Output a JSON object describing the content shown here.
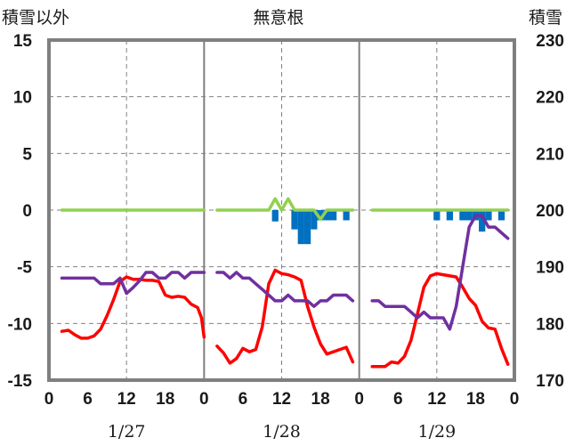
{
  "chart_data": {
    "type": "line",
    "title": "無意根",
    "y_left_label": "積雪以外",
    "y_right_label": "積雪",
    "y_left_range": [
      -15,
      15
    ],
    "y_left_ticks": [
      15,
      10,
      5,
      0,
      -5,
      -10,
      -15
    ],
    "y_right_range": [
      170,
      230
    ],
    "y_right_ticks": [
      230,
      220,
      210,
      200,
      190,
      180,
      170
    ],
    "x_hours_range": [
      0,
      72
    ],
    "x_tick_labels": [
      "0",
      "6",
      "12",
      "18",
      "0",
      "6",
      "12",
      "18",
      "0",
      "6",
      "12",
      "18",
      "0"
    ],
    "day_labels": [
      "1/27",
      "1/28",
      "1/29"
    ],
    "grid": true,
    "series": [
      {
        "color": "#ff0000",
        "axis": "left",
        "segments": [
          [
            [
              2,
              -10.7
            ],
            [
              3,
              -10.6
            ],
            [
              4,
              -11.0
            ],
            [
              5,
              -11.3
            ],
            [
              6,
              -11.3
            ],
            [
              7,
              -11.1
            ],
            [
              8,
              -10.5
            ],
            [
              9,
              -9.3
            ],
            [
              10,
              -7.9
            ],
            [
              11,
              -6.3
            ],
            [
              12,
              -5.9
            ],
            [
              13,
              -6.1
            ],
            [
              14,
              -6.1
            ],
            [
              15,
              -6.2
            ],
            [
              16,
              -6.2
            ],
            [
              17,
              -6.3
            ],
            [
              18,
              -7.5
            ],
            [
              19,
              -7.7
            ],
            [
              20,
              -7.6
            ],
            [
              21,
              -7.7
            ],
            [
              22,
              -8.3
            ],
            [
              23,
              -8.6
            ],
            [
              23.6,
              -9.5
            ],
            [
              24,
              -11.2
            ]
          ],
          [
            [
              26,
              -12.0
            ],
            [
              27,
              -12.6
            ],
            [
              28,
              -13.5
            ],
            [
              29,
              -13.1
            ],
            [
              30,
              -12.2
            ],
            [
              31,
              -12.5
            ],
            [
              32,
              -12.3
            ],
            [
              33,
              -10.3
            ],
            [
              34,
              -6.5
            ],
            [
              35,
              -5.3
            ],
            [
              36,
              -5.6
            ],
            [
              37,
              -5.7
            ],
            [
              38,
              -5.9
            ],
            [
              39,
              -6.2
            ],
            [
              40,
              -8.5
            ],
            [
              41,
              -10.3
            ],
            [
              42,
              -11.8
            ],
            [
              43,
              -12.7
            ],
            [
              44,
              -12.5
            ],
            [
              45,
              -12.3
            ],
            [
              46,
              -12.1
            ],
            [
              47,
              -13.4
            ]
          ],
          [
            [
              50,
              -13.8
            ],
            [
              51,
              -13.8
            ],
            [
              52,
              -13.8
            ],
            [
              53,
              -13.4
            ],
            [
              54,
              -13.5
            ],
            [
              55,
              -12.9
            ],
            [
              56,
              -11.5
            ],
            [
              57,
              -9.2
            ],
            [
              58,
              -6.8
            ],
            [
              59,
              -5.8
            ],
            [
              60,
              -5.6
            ],
            [
              61,
              -5.7
            ],
            [
              62,
              -5.8
            ],
            [
              63,
              -5.9
            ],
            [
              64,
              -6.8
            ],
            [
              65,
              -7.8
            ],
            [
              66,
              -8.4
            ],
            [
              67,
              -9.8
            ],
            [
              68,
              -10.4
            ],
            [
              69,
              -10.5
            ],
            [
              70,
              -12.2
            ],
            [
              71,
              -13.6
            ]
          ]
        ]
      },
      {
        "color": "#7030a0",
        "axis": "right",
        "segments": [
          [
            [
              2,
              188.0
            ],
            [
              3,
              188.0
            ],
            [
              4,
              188.0
            ],
            [
              5,
              188.0
            ],
            [
              6,
              188.0
            ],
            [
              7,
              188.0
            ],
            [
              8,
              187.0
            ],
            [
              9,
              187.0
            ],
            [
              10,
              187.0
            ],
            [
              11,
              188.0
            ],
            [
              12,
              185.3
            ],
            [
              13,
              186.3
            ],
            [
              14,
              187.5
            ],
            [
              15,
              189.0
            ],
            [
              16,
              189.0
            ],
            [
              17,
              188.0
            ],
            [
              18,
              188.0
            ],
            [
              19,
              189.0
            ],
            [
              20,
              189.0
            ],
            [
              21,
              188.0
            ],
            [
              22,
              189.0
            ],
            [
              23,
              189.0
            ],
            [
              24,
              189.0
            ]
          ],
          [
            [
              26,
              189.0
            ],
            [
              27,
              189.0
            ],
            [
              28,
              188.0
            ],
            [
              29,
              189.0
            ],
            [
              30,
              188.0
            ],
            [
              31,
              188.0
            ],
            [
              32,
              187.0
            ],
            [
              33,
              186.0
            ],
            [
              34,
              185.0
            ],
            [
              35,
              184.0
            ],
            [
              36,
              184.0
            ],
            [
              37,
              185.0
            ],
            [
              38,
              184.0
            ],
            [
              39,
              184.0
            ],
            [
              40,
              184.0
            ],
            [
              41,
              183.0
            ],
            [
              42,
              184.0
            ],
            [
              43,
              184.0
            ],
            [
              44,
              185.0
            ],
            [
              45,
              185.0
            ],
            [
              46,
              185.0
            ],
            [
              47,
              184.0
            ]
          ],
          [
            [
              50,
              184.0
            ],
            [
              51,
              184.0
            ],
            [
              52,
              183.0
            ],
            [
              53,
              183.0
            ],
            [
              54,
              183.0
            ],
            [
              55,
              183.0
            ],
            [
              56,
              182.0
            ],
            [
              57,
              181.0
            ],
            [
              58,
              182.0
            ],
            [
              59,
              181.0
            ],
            [
              60,
              181.0
            ],
            [
              61,
              181.0
            ],
            [
              62,
              179.0
            ],
            [
              63,
              183.0
            ],
            [
              64,
              190.0
            ],
            [
              65,
              197.0
            ],
            [
              66,
              199.0
            ],
            [
              67,
              199.0
            ],
            [
              68,
              197.0
            ],
            [
              69,
              197.0
            ],
            [
              70,
              196.0
            ],
            [
              71,
              195.0
            ]
          ]
        ]
      },
      {
        "color": "#92d050",
        "axis": "left",
        "segments": [
          [
            [
              2,
              0
            ],
            [
              24,
              0
            ]
          ],
          [
            [
              26,
              0
            ],
            [
              34,
              0
            ],
            [
              35,
              1.0
            ],
            [
              36,
              0
            ],
            [
              37,
              1.0
            ],
            [
              38,
              0
            ],
            [
              41,
              0
            ],
            [
              42,
              -0.8
            ],
            [
              43,
              0
            ],
            [
              47,
              0
            ]
          ],
          [
            [
              50,
              0
            ],
            [
              71,
              0
            ]
          ]
        ]
      },
      {
        "color": "#0070c0",
        "axis": "left",
        "type": "bar",
        "bars": [
          [
            35,
            -1.0
          ],
          [
            38,
            -1.7
          ],
          [
            39,
            -3.0
          ],
          [
            40,
            -3.0
          ],
          [
            41,
            -1.7
          ],
          [
            42,
            -0.9
          ],
          [
            43,
            -0.9
          ],
          [
            44,
            -0.9
          ],
          [
            46,
            -0.9
          ],
          [
            60,
            -0.9
          ],
          [
            62,
            -0.9
          ],
          [
            64,
            -0.9
          ],
          [
            65,
            -0.9
          ],
          [
            66,
            -0.9
          ],
          [
            67,
            -1.9
          ],
          [
            68,
            -0.9
          ],
          [
            70,
            -0.9
          ]
        ]
      }
    ]
  }
}
